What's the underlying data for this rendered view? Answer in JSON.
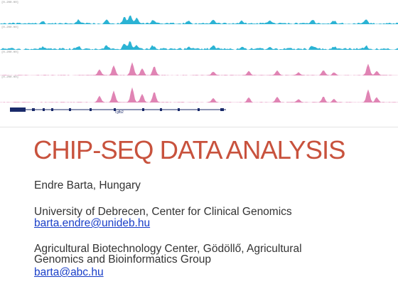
{
  "tracks": [
    {
      "range": "[0-200.00]",
      "color": "#2bb3d4"
    },
    {
      "range": "[0-200.00]",
      "color": "#2bb3d4"
    },
    {
      "range": "[0-200.00]",
      "color": "#e084b4"
    },
    {
      "range": "[0-200.00]",
      "color": "#e084b4"
    }
  ],
  "gene": {
    "label": "Tgfb2"
  },
  "slide": {
    "title": "CHIP-SEQ DATA ANALYSIS",
    "author": "Endre Barta, Hungary",
    "affiliation_1": "University of Debrecen, Center for Clinical Genomics",
    "email_1": "barta.endre@unideb.hu",
    "affiliation_2_line_1": "Agricultural Biotechnology Center, Gödöllő, Agricultural",
    "affiliation_2_line_2": "Genomics and Bioinformatics Group",
    "email_2": "barta@abc.hu"
  },
  "colors": {
    "title": "#c8523d",
    "link": "#1a3fc8",
    "chip_track": "#2bb3d4",
    "input_track": "#e084b4",
    "gene_model": "#1a2a6a"
  }
}
